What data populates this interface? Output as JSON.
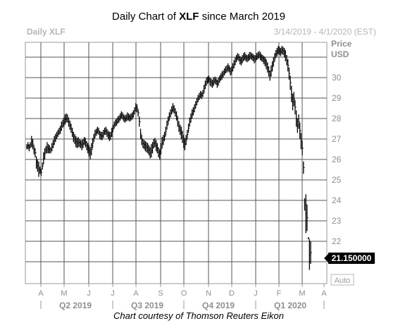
{
  "title_prefix": "Daily Chart of ",
  "title_ticker": "XLF",
  "title_suffix": " since March 2019",
  "chart_header": {
    "left_bold": "Daily",
    "left_ticker": "XLF",
    "date_range": "3/14/2019 - 4/1/2020 (EST)"
  },
  "axis": {
    "price_label": "Price",
    "currency_label": "USD"
  },
  "last_price": "21.150000",
  "auto_label": "Auto",
  "credit": "Chart courtesy of Thomson Reuters Eikon",
  "colors": {
    "grid": "#555555",
    "bars": "#000000",
    "price_tag_bg": "#000000",
    "muted_text": "#8f8f8f"
  },
  "chart_data": {
    "type": "ohlc-bar",
    "ylim": [
      20.1,
      32.4
    ],
    "yticks": [
      22,
      23,
      24,
      25,
      26,
      27,
      28,
      29,
      30
    ],
    "grid": true,
    "months": [
      "A",
      "M",
      "J",
      "J",
      "A",
      "S",
      "O",
      "N",
      "D",
      "J",
      "F",
      "M",
      "A"
    ],
    "quarters": [
      "Q2 2019",
      "Q3 2019",
      "Q4 2019",
      "Q1 2020"
    ],
    "daily_ranges": [
      [
        26.5,
        26.75
      ],
      [
        26.5,
        26.85
      ],
      [
        26.4,
        26.75
      ],
      [
        26.55,
        26.85
      ],
      [
        26.6,
        27.15
      ],
      [
        26.5,
        27.0
      ],
      [
        26.25,
        26.7
      ],
      [
        26.1,
        26.55
      ],
      [
        25.55,
        26.15
      ],
      [
        25.4,
        26.0
      ],
      [
        25.15,
        25.9
      ],
      [
        25.3,
        25.65
      ],
      [
        25.2,
        25.55
      ],
      [
        25.5,
        25.85
      ],
      [
        25.75,
        26.35
      ],
      [
        26.0,
        26.55
      ],
      [
        26.3,
        26.65
      ],
      [
        26.3,
        26.85
      ],
      [
        26.3,
        26.75
      ],
      [
        26.3,
        26.7
      ],
      [
        26.3,
        26.6
      ],
      [
        26.4,
        26.8
      ],
      [
        26.55,
        26.95
      ],
      [
        26.7,
        27.15
      ],
      [
        26.85,
        27.25
      ],
      [
        27.0,
        27.35
      ],
      [
        27.1,
        27.45
      ],
      [
        27.2,
        27.55
      ],
      [
        27.25,
        27.65
      ],
      [
        27.4,
        27.85
      ],
      [
        27.55,
        27.95
      ],
      [
        27.6,
        28.05
      ],
      [
        27.7,
        28.2
      ],
      [
        27.8,
        28.25
      ],
      [
        27.8,
        28.2
      ],
      [
        27.6,
        28.05
      ],
      [
        27.45,
        27.9
      ],
      [
        27.3,
        27.75
      ],
      [
        27.1,
        27.55
      ],
      [
        26.85,
        27.35
      ],
      [
        26.75,
        27.25
      ],
      [
        26.6,
        27.15
      ],
      [
        26.55,
        27.05
      ],
      [
        26.6,
        27.1
      ],
      [
        26.6,
        27.0
      ],
      [
        26.55,
        26.95
      ],
      [
        26.45,
        26.95
      ],
      [
        26.55,
        27.0
      ],
      [
        26.7,
        27.1
      ],
      [
        26.6,
        27.05
      ],
      [
        26.45,
        26.9
      ],
      [
        26.3,
        26.8
      ],
      [
        26.15,
        26.7
      ],
      [
        26.0,
        26.6
      ],
      [
        26.2,
        26.8
      ],
      [
        26.55,
        27.05
      ],
      [
        26.85,
        27.25
      ],
      [
        27.05,
        27.45
      ],
      [
        27.15,
        27.5
      ],
      [
        27.25,
        27.6
      ],
      [
        27.2,
        27.55
      ],
      [
        27.0,
        27.4
      ],
      [
        26.95,
        27.35
      ],
      [
        26.95,
        27.35
      ],
      [
        27.05,
        27.45
      ],
      [
        27.2,
        27.55
      ],
      [
        27.2,
        27.6
      ],
      [
        27.1,
        27.5
      ],
      [
        27.0,
        27.4
      ],
      [
        26.9,
        27.35
      ],
      [
        26.95,
        27.35
      ],
      [
        27.1,
        27.55
      ],
      [
        27.35,
        27.7
      ],
      [
        27.5,
        27.85
      ],
      [
        27.6,
        27.95
      ],
      [
        27.65,
        28.0
      ],
      [
        27.75,
        28.1
      ],
      [
        27.8,
        28.15
      ],
      [
        27.9,
        28.25
      ],
      [
        28.0,
        28.35
      ],
      [
        27.95,
        28.3
      ],
      [
        27.85,
        28.2
      ],
      [
        27.8,
        28.15
      ],
      [
        27.85,
        28.2
      ],
      [
        27.9,
        28.3
      ],
      [
        27.9,
        28.25
      ],
      [
        27.85,
        28.2
      ],
      [
        27.9,
        28.25
      ],
      [
        27.95,
        28.3
      ],
      [
        28.05,
        28.4
      ],
      [
        28.2,
        28.55
      ],
      [
        28.35,
        28.75
      ],
      [
        28.3,
        28.7
      ],
      [
        28.1,
        28.45
      ],
      [
        27.6,
        28.1
      ],
      [
        27.0,
        27.5
      ],
      [
        26.7,
        27.2
      ],
      [
        26.55,
        27.0
      ],
      [
        26.5,
        26.95
      ],
      [
        26.4,
        26.9
      ],
      [
        26.35,
        26.85
      ],
      [
        26.3,
        26.8
      ],
      [
        26.2,
        26.7
      ],
      [
        26.05,
        26.6
      ],
      [
        26.1,
        26.75
      ],
      [
        26.3,
        26.85
      ],
      [
        26.55,
        27.0
      ],
      [
        26.6,
        27.05
      ],
      [
        26.4,
        26.95
      ],
      [
        26.3,
        26.8
      ],
      [
        26.1,
        26.6
      ],
      [
        26.0,
        26.5
      ],
      [
        26.25,
        26.8
      ],
      [
        26.55,
        27.1
      ],
      [
        26.7,
        27.2
      ],
      [
        26.9,
        27.35
      ],
      [
        27.15,
        27.6
      ],
      [
        27.45,
        27.9
      ],
      [
        27.7,
        28.1
      ],
      [
        27.9,
        28.3
      ],
      [
        28.05,
        28.45
      ],
      [
        28.2,
        28.6
      ],
      [
        28.3,
        28.75
      ],
      [
        28.25,
        28.65
      ],
      [
        28.1,
        28.5
      ],
      [
        27.9,
        28.35
      ],
      [
        27.6,
        28.1
      ],
      [
        27.35,
        27.85
      ],
      [
        27.2,
        27.7
      ],
      [
        27.0,
        27.6
      ],
      [
        26.8,
        27.4
      ],
      [
        26.55,
        27.2
      ],
      [
        26.45,
        27.05
      ],
      [
        26.7,
        27.2
      ],
      [
        27.0,
        27.45
      ],
      [
        27.3,
        27.75
      ],
      [
        27.6,
        28.05
      ],
      [
        27.8,
        28.25
      ],
      [
        28.0,
        28.45
      ],
      [
        28.15,
        28.55
      ],
      [
        28.3,
        28.7
      ],
      [
        28.5,
        28.85
      ],
      [
        28.65,
        29.0
      ],
      [
        28.8,
        29.15
      ],
      [
        28.9,
        29.25
      ],
      [
        29.0,
        29.35
      ],
      [
        28.95,
        29.3
      ],
      [
        29.05,
        29.4
      ],
      [
        29.25,
        29.65
      ],
      [
        29.45,
        29.85
      ],
      [
        29.6,
        30.0
      ],
      [
        29.7,
        30.05
      ],
      [
        29.75,
        30.1
      ],
      [
        29.6,
        30.0
      ],
      [
        29.55,
        29.95
      ],
      [
        29.5,
        29.9
      ],
      [
        29.6,
        30.0
      ],
      [
        29.7,
        30.05
      ],
      [
        29.65,
        30.0
      ],
      [
        29.5,
        29.9
      ],
      [
        29.6,
        30.0
      ],
      [
        29.75,
        30.1
      ],
      [
        29.85,
        30.2
      ],
      [
        29.9,
        30.3
      ],
      [
        30.0,
        30.35
      ],
      [
        30.1,
        30.45
      ],
      [
        30.2,
        30.55
      ],
      [
        30.25,
        30.6
      ],
      [
        30.3,
        30.7
      ],
      [
        30.25,
        30.6
      ],
      [
        30.1,
        30.5
      ],
      [
        30.15,
        30.55
      ],
      [
        30.3,
        30.7
      ],
      [
        30.45,
        30.85
      ],
      [
        30.6,
        31.0
      ],
      [
        30.75,
        31.1
      ],
      [
        30.85,
        31.2
      ],
      [
        30.8,
        31.15
      ],
      [
        30.65,
        31.05
      ],
      [
        30.6,
        31.0
      ],
      [
        30.7,
        31.1
      ],
      [
        30.8,
        31.2
      ],
      [
        30.85,
        31.25
      ],
      [
        30.8,
        31.15
      ],
      [
        30.75,
        31.1
      ],
      [
        30.8,
        31.15
      ],
      [
        30.85,
        31.25
      ],
      [
        30.9,
        31.25
      ],
      [
        30.85,
        31.2
      ],
      [
        30.8,
        31.15
      ],
      [
        30.7,
        31.1
      ],
      [
        30.75,
        31.1
      ],
      [
        30.85,
        31.2
      ],
      [
        30.9,
        31.25
      ],
      [
        30.95,
        31.3
      ],
      [
        30.85,
        31.25
      ],
      [
        30.8,
        31.15
      ],
      [
        30.75,
        31.1
      ],
      [
        30.65,
        31.05
      ],
      [
        30.55,
        31.0
      ],
      [
        30.4,
        30.9
      ],
      [
        30.25,
        30.75
      ],
      [
        30.05,
        30.55
      ],
      [
        29.85,
        30.35
      ],
      [
        30.05,
        30.6
      ],
      [
        30.3,
        30.8
      ],
      [
        30.55,
        31.0
      ],
      [
        30.8,
        31.2
      ],
      [
        30.95,
        31.35
      ],
      [
        31.05,
        31.45
      ],
      [
        31.15,
        31.55
      ],
      [
        31.1,
        31.5
      ],
      [
        31.05,
        31.45
      ],
      [
        31.15,
        31.55
      ],
      [
        31.1,
        31.5
      ],
      [
        31.0,
        31.45
      ],
      [
        30.8,
        31.35
      ],
      [
        30.6,
        31.1
      ],
      [
        30.3,
        30.9
      ],
      [
        29.9,
        30.5
      ],
      [
        29.4,
        30.1
      ],
      [
        28.8,
        29.6
      ],
      [
        28.4,
        29.2
      ],
      [
        28.6,
        29.3
      ],
      [
        28.2,
        28.9
      ],
      [
        27.6,
        28.4
      ],
      [
        27.3,
        28.0
      ],
      [
        27.5,
        28.2
      ],
      [
        27.0,
        27.8
      ],
      [
        26.5,
        27.3
      ],
      [
        26.2,
        26.9
      ],
      [
        25.3,
        25.9
      ],
      [
        23.5,
        24.1
      ],
      [
        22.4,
        24.3
      ],
      [
        22.5,
        23.8
      ],
      [
        22.2,
        22.2
      ],
      [
        20.6,
        22.1
      ],
      [
        20.9,
        22.0
      ]
    ]
  }
}
